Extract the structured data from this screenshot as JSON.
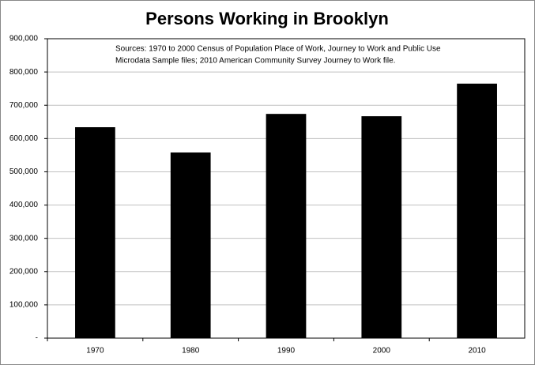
{
  "chart_data": {
    "type": "bar",
    "title": "Persons Working in Brooklyn",
    "annotation": [
      "Sources:  1970 to 2000 Census of Population Place of Work, Journey to Work and Public Use",
      "Microdata Sample files; 2010 American Community Survey Journey to Work file."
    ],
    "categories": [
      "1970",
      "1980",
      "1990",
      "2000",
      "2010"
    ],
    "values": [
      634000,
      558000,
      674000,
      667000,
      765000
    ],
    "color": "#000000",
    "ylim": [
      0,
      900000
    ],
    "yticks": [
      {
        "value": 0,
        "label": "-"
      },
      {
        "value": 100000,
        "label": "100,000"
      },
      {
        "value": 200000,
        "label": "200,000"
      },
      {
        "value": 300000,
        "label": "300,000"
      },
      {
        "value": 400000,
        "label": "400,000"
      },
      {
        "value": 500000,
        "label": "500,000"
      },
      {
        "value": 600000,
        "label": "600,000"
      },
      {
        "value": 700000,
        "label": "700,000"
      },
      {
        "value": 800000,
        "label": "800,000"
      },
      {
        "value": 900000,
        "label": "900,000"
      }
    ],
    "grid": true
  }
}
